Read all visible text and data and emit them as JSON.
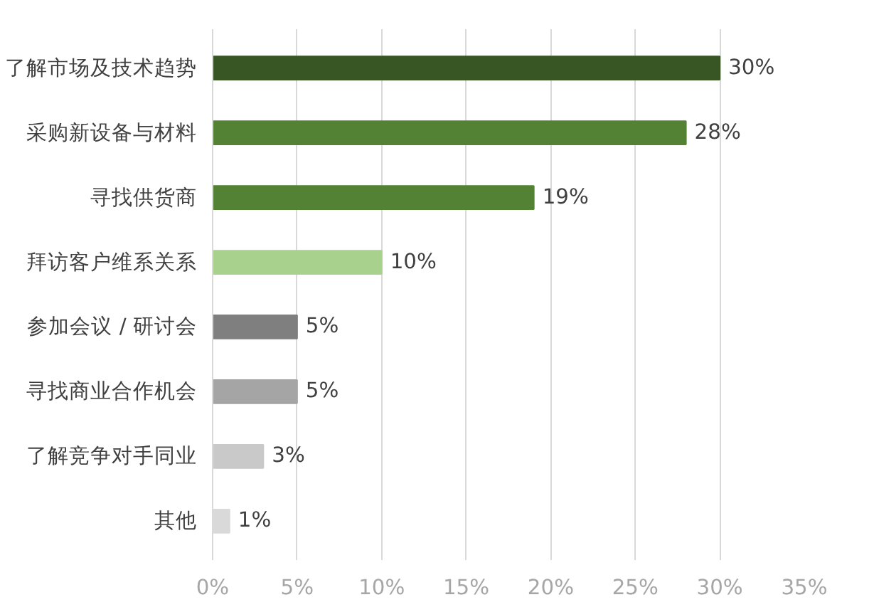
{
  "chart_data": {
    "type": "bar",
    "orientation": "horizontal",
    "categories": [
      "了解市场及技术趋势",
      "采购新设备与材料",
      "寻找供货商",
      "拜访客户维系关系",
      "参加会议 / 研讨会",
      "寻找商业合作机会",
      "了解竞争对手同业",
      "其他"
    ],
    "values": [
      30,
      28,
      19,
      10,
      5,
      5,
      3,
      1
    ],
    "value_labels": [
      "30%",
      "28%",
      "19%",
      "10%",
      "5%",
      "5%",
      "3%",
      "1%"
    ],
    "colors": [
      "#375623",
      "#548235",
      "#548235",
      "#a9d18e",
      "#7f7f7f",
      "#a5a5a5",
      "#c9c9c9",
      "#d9d9d9"
    ],
    "xlim": [
      0,
      35
    ],
    "xticks": [
      {
        "value": 0,
        "label": "0%"
      },
      {
        "value": 5,
        "label": "5%"
      },
      {
        "value": 10,
        "label": "10%"
      },
      {
        "value": 15,
        "label": "15%"
      },
      {
        "value": 20,
        "label": "20%"
      },
      {
        "value": 25,
        "label": "25%"
      },
      {
        "value": 30,
        "label": "30%"
      },
      {
        "value": 35,
        "label": "35%"
      }
    ],
    "grid": "x"
  }
}
